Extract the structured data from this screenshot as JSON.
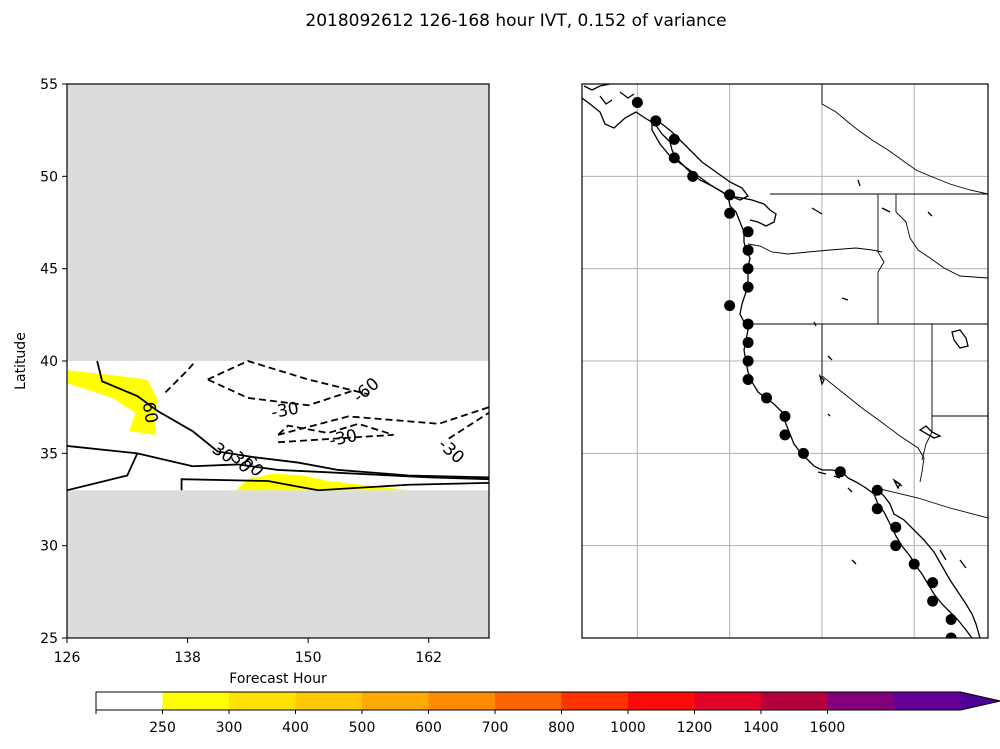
{
  "figure_title": "2018092612 126-168 hour IVT, 0.152 of variance",
  "colors": {
    "masked": "#dcdcdc",
    "positive_fill": "#ffff00",
    "contour": "#000000",
    "point": "#000000",
    "grid": "#b0b0b0"
  },
  "chart_data": [
    {
      "type": "contour",
      "panel": "hovmoller",
      "title": "",
      "xlabel": "Forecast Hour",
      "ylabel": "Latitude",
      "xlim": [
        126,
        168
      ],
      "ylim": [
        25,
        55
      ],
      "xticks": [
        "126",
        "138",
        "150",
        "162"
      ],
      "xtick_values": [
        126,
        138,
        150,
        162
      ],
      "yticks": [
        "25",
        "30",
        "35",
        "40",
        "45",
        "50",
        "55"
      ],
      "ytick_values": [
        25,
        30,
        35,
        40,
        45,
        50,
        55
      ],
      "valid_lat_range": [
        33,
        40
      ],
      "filled_regions": [
        {
          "level": 250,
          "points": [
            [
              126,
              39.5
            ],
            [
              129.5,
              39.3
            ],
            [
              134,
              39.0
            ],
            [
              135,
              37.9
            ],
            [
              134.7,
              37.0
            ],
            [
              134.8,
              36.0
            ],
            [
              132.2,
              36.2
            ],
            [
              132.8,
              37.2
            ],
            [
              130.5,
              38.0
            ],
            [
              126,
              38.8
            ]
          ]
        },
        {
          "level": 250,
          "points": [
            [
              142.8,
              33.0
            ],
            [
              144,
              33.6
            ],
            [
              146.5,
              33.9
            ],
            [
              149.5,
              33.8
            ],
            [
              152,
              33.5
            ],
            [
              157,
              33.2
            ],
            [
              160,
              33.0
            ]
          ]
        }
      ],
      "contours": [
        {
          "level": 60,
          "style": "solid",
          "points": [
            [
              129,
              40
            ],
            [
              129.5,
              38.9
            ],
            [
              133,
              38.1
            ],
            [
              135,
              37.3
            ],
            [
              138.5,
              36.2
            ],
            [
              141,
              35.1
            ],
            [
              144.5,
              34.8
            ],
            [
              149,
              34.5
            ],
            [
              153,
              34.1
            ],
            [
              160,
              33.8
            ],
            [
              168,
              33.7
            ]
          ]
        },
        {
          "level": 30,
          "style": "solid",
          "points": [
            [
              126,
              35.4
            ],
            [
              133,
              35.0
            ],
            [
              138.5,
              34.3
            ],
            [
              143,
              34.4
            ],
            [
              147,
              34.1
            ],
            [
              151,
              34.0
            ],
            [
              162,
              33.7
            ],
            [
              168,
              33.6
            ]
          ]
        },
        {
          "level": 30,
          "style": "solid",
          "points": [
            [
              126,
              33.0
            ],
            [
              132,
              33.8
            ],
            [
              133,
              35.0
            ]
          ]
        },
        {
          "level": 30,
          "style": "solid",
          "points": [
            [
              137.4,
              33.0
            ],
            [
              137.4,
              33.6
            ],
            [
              146,
              33.5
            ],
            [
              149,
              33.2
            ],
            [
              151,
              33.0
            ]
          ]
        },
        {
          "level": 30,
          "style": "solid",
          "points": [
            [
              151,
              33.0
            ],
            [
              160,
              33.3
            ],
            [
              168,
              33.4
            ]
          ]
        },
        {
          "level": -60,
          "style": "dashed",
          "points": [
            [
              135.8,
              38.3
            ],
            [
              138,
              39.5
            ],
            [
              138.8,
              40.0
            ]
          ]
        },
        {
          "level": -30,
          "style": "dashed",
          "points": [
            [
              140,
              39.0
            ],
            [
              144,
              40.0
            ],
            [
              150,
              39.0
            ],
            [
              156,
              38.2
            ],
            [
              154.5,
              38.4
            ],
            [
              150,
              37.6
            ],
            [
              144,
              38.0
            ],
            [
              140,
              39.0
            ]
          ]
        },
        {
          "level": -30,
          "style": "dashed",
          "points": [
            [
              147,
              36.0
            ],
            [
              154,
              37.0
            ],
            [
              163,
              36.6
            ],
            [
              168,
              37.5
            ]
          ]
        },
        {
          "level": -30,
          "style": "dashed",
          "points": [
            [
              147,
              35.6
            ],
            [
              158.5,
              36.0
            ],
            [
              155,
              36.6
            ],
            [
              152,
              36.1
            ],
            [
              148,
              36.5
            ],
            [
              147,
              36.0
            ]
          ]
        },
        {
          "level": -30,
          "style": "dashed",
          "points": [
            [
              164,
              35.8
            ],
            [
              166,
              36.5
            ],
            [
              168,
              37.2
            ]
          ]
        }
      ],
      "contour_labels": [
        {
          "text": "-60",
          "x": 155.8,
          "y": 38.4,
          "rotate": -40
        },
        {
          "text": "60",
          "x": 134.2,
          "y": 37.2,
          "rotate": 80
        },
        {
          "text": "-30",
          "x": 147.7,
          "y": 37.3,
          "rotate": -10
        },
        {
          "text": "-30",
          "x": 153.5,
          "y": 35.8,
          "rotate": -12
        },
        {
          "text": "-30",
          "x": 164.2,
          "y": 35.1,
          "rotate": 42
        },
        {
          "text": "30",
          "x": 141.5,
          "y": 35.0,
          "rotate": 35
        },
        {
          "text": "30",
          "x": 143.3,
          "y": 34.5,
          "rotate": 50
        },
        {
          "text": "60",
          "x": 144.5,
          "y": 34.3,
          "rotate": 50
        }
      ]
    },
    {
      "type": "map",
      "panel": "west-coast-map",
      "grid": true,
      "lon_range": [
        -131,
        -109
      ],
      "lat_range": [
        25,
        55
      ],
      "gridline_lon": [
        -128,
        -123,
        -118,
        -113
      ],
      "gridline_lat": [
        30,
        35,
        40,
        45,
        50
      ],
      "points": [
        {
          "lon": -128,
          "lat": 54
        },
        {
          "lon": -127,
          "lat": 53
        },
        {
          "lon": -126,
          "lat": 52
        },
        {
          "lon": -126,
          "lat": 51
        },
        {
          "lon": -125,
          "lat": 50
        },
        {
          "lon": -123,
          "lat": 49
        },
        {
          "lon": -123,
          "lat": 48
        },
        {
          "lon": -122,
          "lat": 47
        },
        {
          "lon": -122,
          "lat": 46
        },
        {
          "lon": -122,
          "lat": 45
        },
        {
          "lon": -122,
          "lat": 44
        },
        {
          "lon": -123,
          "lat": 43
        },
        {
          "lon": -122,
          "lat": 42
        },
        {
          "lon": -122,
          "lat": 41
        },
        {
          "lon": -122,
          "lat": 40
        },
        {
          "lon": -122,
          "lat": 39
        },
        {
          "lon": -121,
          "lat": 38
        },
        {
          "lon": -120,
          "lat": 37
        },
        {
          "lon": -120,
          "lat": 36
        },
        {
          "lon": -119,
          "lat": 35
        },
        {
          "lon": -117,
          "lat": 34
        },
        {
          "lon": -115,
          "lat": 33
        },
        {
          "lon": -115,
          "lat": 32
        },
        {
          "lon": -114,
          "lat": 31
        },
        {
          "lon": -114,
          "lat": 30
        },
        {
          "lon": -113,
          "lat": 29
        },
        {
          "lon": -112,
          "lat": 28
        },
        {
          "lon": -112,
          "lat": 27
        },
        {
          "lon": -111,
          "lat": 26
        },
        {
          "lon": -111,
          "lat": 25
        }
      ]
    },
    {
      "type": "colorbar",
      "orientation": "horizontal",
      "extend": "max",
      "ticks": [
        "250",
        "300",
        "400",
        "500",
        "600",
        "700",
        "800",
        "1000",
        "1200",
        "1400",
        "1600"
      ],
      "colors": [
        "#ffffff",
        "#ffff00",
        "#ffe100",
        "#ffc800",
        "#ffaa00",
        "#ff8c00",
        "#ff6400",
        "#ff3200",
        "#ff0a0a",
        "#e10028",
        "#b4003c",
        "#82007a",
        "#640096",
        "#4b0096"
      ]
    }
  ]
}
